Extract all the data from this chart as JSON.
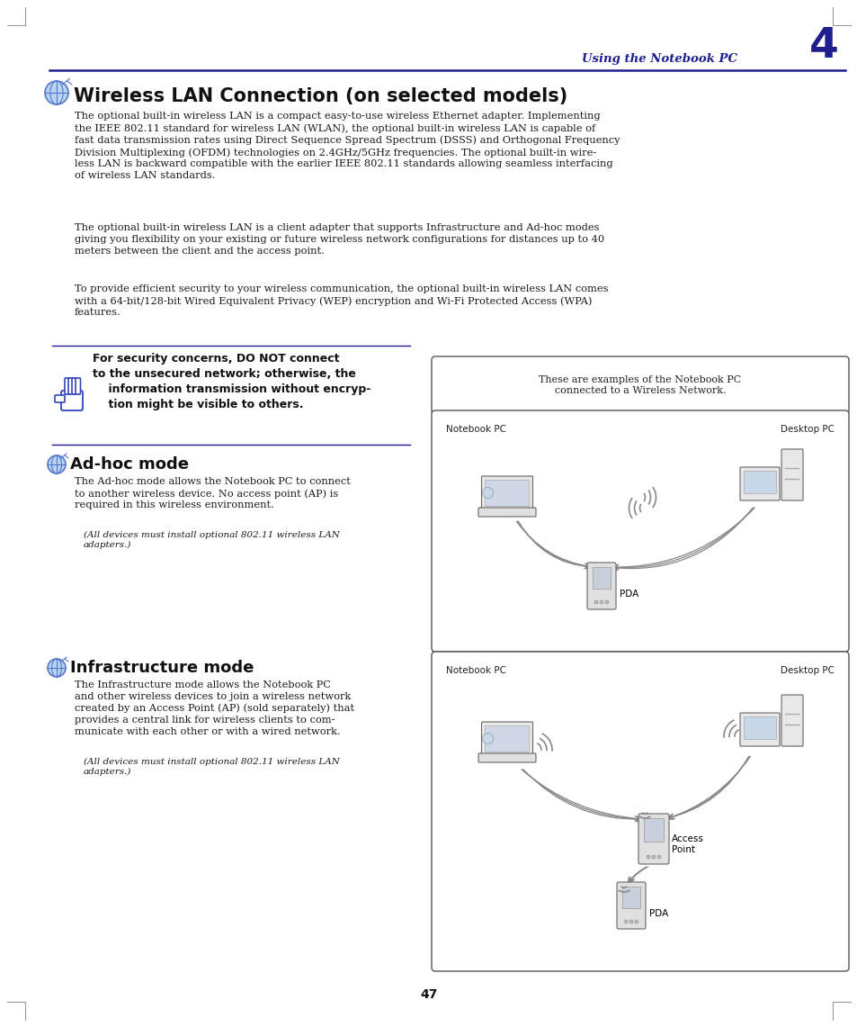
{
  "page_bg": "#ffffff",
  "header_line_color": "#1e1e8f",
  "header_text": "Using the Notebook PC",
  "header_number": "4",
  "header_color": "#1e1e8f",
  "title": "Wireless LAN Connection (on selected models)",
  "title_color": "#1a1a1a",
  "body_color": "#1a1a1a",
  "page_number": "47",
  "para1": "The optional built-in wireless LAN is a compact easy-to-use wireless Ethernet adapter. Implementing\nthe IEEE 802.11 standard for wireless LAN (WLAN), the optional built-in wireless LAN is capable of\nfast data transmission rates using Direct Sequence Spread Spectrum (DSSS) and Orthogonal Frequency\nDivision Multiplexing (OFDM) technologies on 2.4GHz/5GHz frequencies. The optional built-in wire-\nless LAN is backward compatible with the earlier IEEE 802.11 standards allowing seamless interfacing\nof wireless LAN standards.",
  "para2": "The optional built-in wireless LAN is a client adapter that supports Infrastructure and Ad-hoc modes\ngiving you flexibility on your existing or future wireless network configurations for distances up to 40\nmeters between the client and the access point.",
  "para3": "To provide efficient security to your wireless communication, the optional built-in wireless LAN comes\nwith a 64-bit/128-bit Wired Equivalent Privacy (WEP) encryption and Wi-Fi Protected Access (WPA)\nfeatures.",
  "warning_text": "For security concerns, DO NOT connect\nto the unsecured network; otherwise, the\n    information transmission without encryp-\n    tion might be visible to others.",
  "adhoc_title": "Ad-hoc mode",
  "adhoc_body": "The Ad-hoc mode allows the Notebook PC to connect\nto another wireless device. No access point (AP) is\nrequired in this wireless environment.",
  "adhoc_note": "(All devices must install optional 802.11 wireless LAN\nadapters.)",
  "infra_title": "Infrastructure mode",
  "infra_body": "The Infrastructure mode allows the Notebook PC\nand other wireless devices to join a wireless network\ncreated by an Access Point (AP) (sold separately) that\nprovides a central link for wireless clients to com-\nmunicate with each other or with a wired network.",
  "infra_note": "(All devices must install optional 802.11 wireless LAN\nadapters.)",
  "box1_text": "These are examples of the Notebook PC\nconnected to a Wireless Network.",
  "box2_label_notebook": "Notebook PC",
  "box2_label_desktop": "Desktop PC",
  "box2_label_pda": "PDA",
  "box3_label_notebook": "Notebook PC",
  "box3_label_desktop": "Desktop PC",
  "box3_label_access": "Access\nPoint",
  "box3_label_pda": "PDA",
  "warn_line_color": "#1e1e8f",
  "hand_color": "#3344bb",
  "icon_color": "#4488cc"
}
